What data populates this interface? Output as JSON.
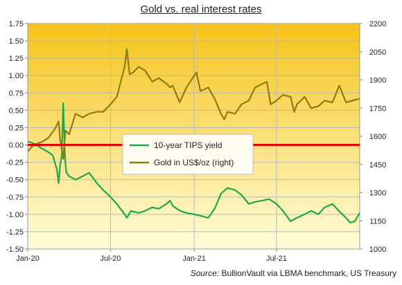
{
  "chart_data": {
    "type": "line",
    "title": "Gold vs. real interest rates",
    "source_label": "Source:",
    "source_text": "BullionVault via LBMA benchmark, US Treasury",
    "x_ticks": [
      "Jan-20",
      "Jul-20",
      "Jan-21",
      "Jul-21"
    ],
    "x_range": [
      "2020-01-01",
      "2021-12-31"
    ],
    "y_left": {
      "range": [
        -1.5,
        1.75
      ],
      "ticks": [
        "-1.50",
        "-1.25",
        "-1.00",
        "-0.75",
        "-0.50",
        "-0.25",
        "0.00",
        "0.25",
        "0.50",
        "0.75",
        "1.00",
        "1.25",
        "1.50",
        "1.75"
      ]
    },
    "y_right": {
      "range": [
        1000,
        2200
      ],
      "ticks": [
        "1000",
        "1150",
        "1300",
        "1450",
        "1600",
        "1750",
        "1900",
        "2050",
        "2200"
      ]
    },
    "zero_line": 0,
    "background": {
      "top": "#f7c31a",
      "bottom": "#fefdd8"
    },
    "legend": {
      "placement": "center-left"
    },
    "series": [
      {
        "name": "10-year TIPS yield",
        "axis": "left",
        "color": "#1aa84a",
        "x": [
          "2020-01-01",
          "2020-01-15",
          "2020-02-01",
          "2020-02-15",
          "2020-02-25",
          "2020-03-05",
          "2020-03-09",
          "2020-03-12",
          "2020-03-16",
          "2020-03-19",
          "2020-03-23",
          "2020-03-26",
          "2020-04-01",
          "2020-04-15",
          "2020-05-01",
          "2020-05-15",
          "2020-06-01",
          "2020-06-15",
          "2020-07-01",
          "2020-07-15",
          "2020-08-01",
          "2020-08-06",
          "2020-08-15",
          "2020-09-01",
          "2020-09-15",
          "2020-10-01",
          "2020-10-15",
          "2020-11-01",
          "2020-11-09",
          "2020-11-15",
          "2020-12-01",
          "2020-12-15",
          "2021-01-01",
          "2021-01-15",
          "2021-02-01",
          "2021-02-15",
          "2021-03-01",
          "2021-03-15",
          "2021-04-01",
          "2021-04-15",
          "2021-05-01",
          "2021-05-15",
          "2021-06-01",
          "2021-06-15",
          "2021-07-01",
          "2021-07-15",
          "2021-08-01",
          "2021-08-15",
          "2021-09-01",
          "2021-09-15",
          "2021-10-01",
          "2021-10-15",
          "2021-11-01",
          "2021-11-15",
          "2021-12-01",
          "2021-12-10",
          "2021-12-20",
          "2021-12-31"
        ],
        "values": [
          0.05,
          0.02,
          -0.05,
          -0.1,
          -0.15,
          -0.35,
          -0.55,
          -0.3,
          -0.15,
          0.6,
          -0.2,
          -0.4,
          -0.45,
          -0.5,
          -0.45,
          -0.4,
          -0.55,
          -0.65,
          -0.75,
          -0.85,
          -1.0,
          -1.05,
          -0.95,
          -0.98,
          -0.95,
          -0.9,
          -0.92,
          -0.85,
          -0.8,
          -0.88,
          -0.95,
          -0.98,
          -1.0,
          -1.02,
          -1.05,
          -0.92,
          -0.7,
          -0.62,
          -0.65,
          -0.72,
          -0.85,
          -0.82,
          -0.8,
          -0.78,
          -0.85,
          -0.95,
          -1.1,
          -1.05,
          -1.0,
          -0.95,
          -1.0,
          -0.9,
          -0.85,
          -0.95,
          -1.05,
          -1.12,
          -1.1,
          -0.98
        ]
      },
      {
        "name": "Gold in US$/oz (right)",
        "axis": "right",
        "color": "#8a7d0e",
        "x": [
          "2020-01-01",
          "2020-01-15",
          "2020-02-01",
          "2020-02-15",
          "2020-03-01",
          "2020-03-09",
          "2020-03-12",
          "2020-03-19",
          "2020-03-24",
          "2020-04-01",
          "2020-04-15",
          "2020-05-01",
          "2020-05-15",
          "2020-06-01",
          "2020-06-15",
          "2020-07-01",
          "2020-07-15",
          "2020-08-01",
          "2020-08-06",
          "2020-08-12",
          "2020-08-20",
          "2020-09-01",
          "2020-09-15",
          "2020-10-01",
          "2020-10-15",
          "2020-11-01",
          "2020-11-09",
          "2020-11-15",
          "2020-11-30",
          "2020-12-15",
          "2021-01-06",
          "2021-01-15",
          "2021-02-01",
          "2021-02-15",
          "2021-03-01",
          "2021-03-08",
          "2021-03-15",
          "2021-04-01",
          "2021-04-15",
          "2021-05-01",
          "2021-05-15",
          "2021-06-01",
          "2021-06-10",
          "2021-06-18",
          "2021-07-01",
          "2021-07-15",
          "2021-08-01",
          "2021-08-09",
          "2021-08-15",
          "2021-09-01",
          "2021-09-15",
          "2021-10-01",
          "2021-10-15",
          "2021-11-01",
          "2021-11-16",
          "2021-12-01",
          "2021-12-15",
          "2021-12-31"
        ],
        "values": [
          1520,
          1555,
          1570,
          1590,
          1640,
          1680,
          1590,
          1480,
          1630,
          1610,
          1720,
          1700,
          1720,
          1730,
          1730,
          1770,
          1810,
          1970,
          2065,
          1930,
          1940,
          1970,
          1950,
          1890,
          1910,
          1880,
          1860,
          1870,
          1780,
          1860,
          1940,
          1840,
          1860,
          1800,
          1720,
          1690,
          1730,
          1720,
          1770,
          1790,
          1860,
          1880,
          1890,
          1770,
          1790,
          1820,
          1810,
          1730,
          1770,
          1810,
          1750,
          1760,
          1790,
          1780,
          1870,
          1780,
          1790,
          1800
        ]
      }
    ]
  }
}
